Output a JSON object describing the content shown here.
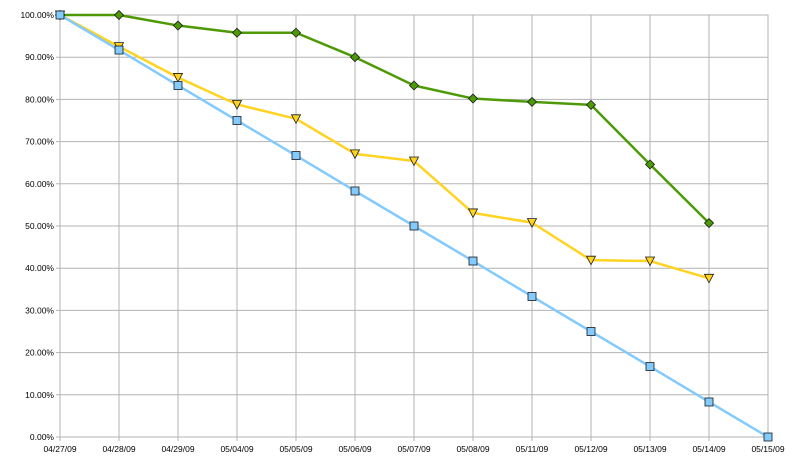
{
  "chart_data": {
    "type": "line",
    "categories": [
      "04/27/09",
      "04/28/09",
      "04/29/09",
      "05/04/09",
      "05/05/09",
      "05/06/09",
      "05/07/09",
      "05/08/09",
      "05/11/09",
      "05/12/09",
      "05/13/09",
      "05/14/09",
      "05/15/09"
    ],
    "y_tick_labels": [
      "0.00%",
      "10.00%",
      "20.00%",
      "30.00%",
      "40.00%",
      "50.00%",
      "60.00%",
      "70.00%",
      "80.00%",
      "90.00%",
      "100.00%"
    ],
    "ylim": [
      0,
      100
    ],
    "grid": true,
    "legend": "none",
    "series": [
      {
        "marker": "diamond",
        "color": "#4e9a06",
        "marker_fill": "#4e9a06",
        "values": [
          100,
          100,
          97.5,
          95.8,
          95.8,
          90,
          83.3,
          80.2,
          79.4,
          78.7,
          64.6,
          50.7,
          null
        ]
      },
      {
        "marker": "triangle-down",
        "color": "#ffd320",
        "marker_fill": "#ffd320",
        "values": [
          100,
          92.5,
          85.2,
          78.8,
          75.4,
          67.1,
          65.4,
          53.1,
          50.8,
          41.9,
          41.7,
          37.6,
          null
        ]
      },
      {
        "marker": "square",
        "color": "#83caff",
        "marker_fill": "#83caff",
        "values": [
          100,
          91.7,
          83.3,
          75,
          66.7,
          58.3,
          50,
          41.7,
          33.3,
          25,
          16.7,
          8.3,
          0
        ]
      }
    ]
  }
}
